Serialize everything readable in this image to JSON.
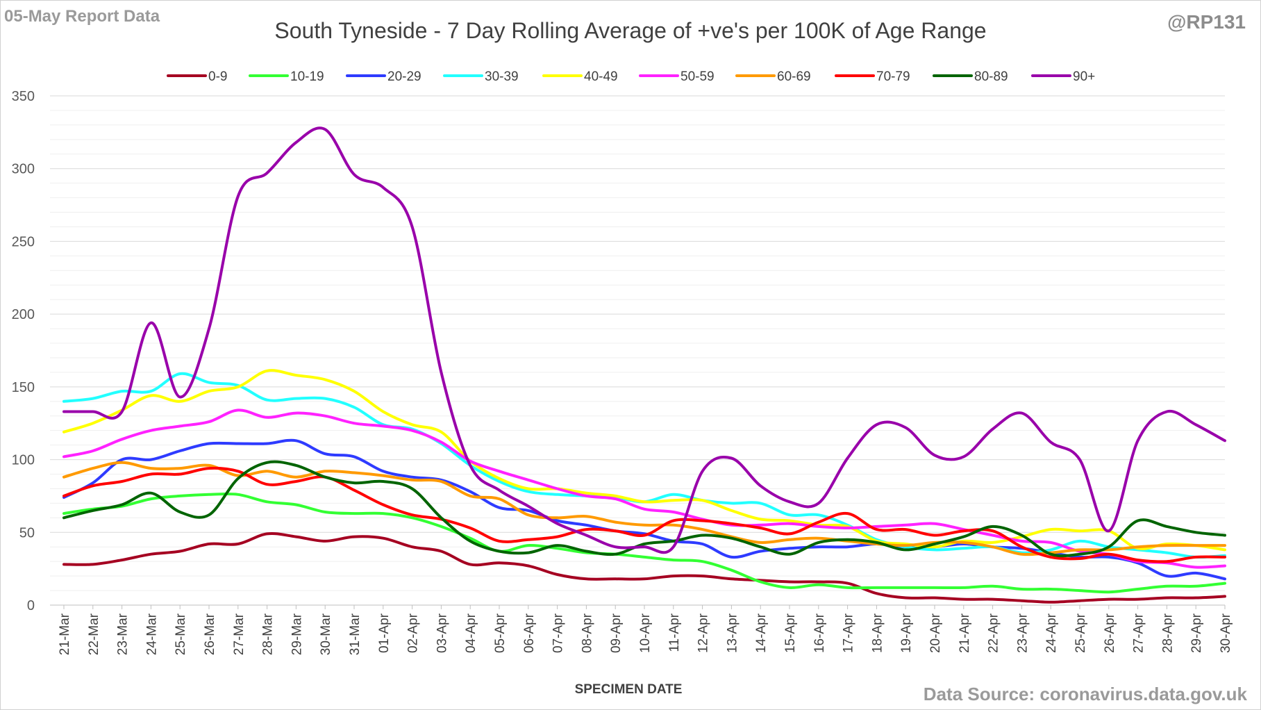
{
  "header": {
    "report_label": "05-May Report Data",
    "handle": "@RP131",
    "source": "Data Source: coronavirus.data.gov.uk"
  },
  "chart_data": {
    "type": "line",
    "title": "South Tyneside - 7 Day Rolling Average of +ve's per 100K of Age Range",
    "xlabel": "SPECIMEN DATE",
    "ylabel": "",
    "ylim": [
      0,
      350
    ],
    "yticks": [
      0,
      50,
      100,
      150,
      200,
      250,
      300,
      350
    ],
    "grid": true,
    "legend_position": "top",
    "categories": [
      "21-Mar",
      "22-Mar",
      "23-Mar",
      "24-Mar",
      "25-Mar",
      "26-Mar",
      "27-Mar",
      "28-Mar",
      "29-Mar",
      "30-Mar",
      "31-Mar",
      "01-Apr",
      "02-Apr",
      "03-Apr",
      "04-Apr",
      "05-Apr",
      "06-Apr",
      "07-Apr",
      "08-Apr",
      "09-Apr",
      "10-Apr",
      "11-Apr",
      "12-Apr",
      "13-Apr",
      "14-Apr",
      "15-Apr",
      "16-Apr",
      "17-Apr",
      "18-Apr",
      "19-Apr",
      "20-Apr",
      "21-Apr",
      "22-Apr",
      "23-Apr",
      "24-Apr",
      "25-Apr",
      "26-Apr",
      "27-Apr",
      "28-Apr",
      "29-Apr",
      "30-Apr"
    ],
    "series": [
      {
        "name": "0-9",
        "color": "#a50021",
        "values": [
          28,
          28,
          31,
          35,
          37,
          42,
          42,
          49,
          47,
          44,
          47,
          46,
          40,
          37,
          28,
          29,
          27,
          21,
          18,
          18,
          18,
          20,
          20,
          18,
          17,
          16,
          16,
          15,
          8,
          5,
          5,
          4,
          4,
          3,
          2,
          3,
          4,
          4,
          5,
          5,
          6
        ]
      },
      {
        "name": "10-19",
        "color": "#33ff33",
        "values": [
          63,
          66,
          68,
          73,
          75,
          76,
          76,
          71,
          69,
          64,
          63,
          63,
          60,
          54,
          46,
          37,
          41,
          39,
          36,
          35,
          33,
          31,
          30,
          24,
          16,
          12,
          14,
          12,
          12,
          12,
          12,
          12,
          13,
          11,
          11,
          10,
          9,
          11,
          13,
          13,
          15
        ]
      },
      {
        "name": "20-29",
        "color": "#2e3bff",
        "values": [
          74,
          84,
          100,
          100,
          106,
          111,
          111,
          111,
          113,
          104,
          102,
          92,
          88,
          86,
          78,
          67,
          65,
          58,
          55,
          51,
          49,
          44,
          42,
          33,
          37,
          39,
          40,
          40,
          42,
          40,
          40,
          42,
          40,
          39,
          36,
          33,
          33,
          29,
          20,
          22,
          18
        ]
      },
      {
        "name": "30-39",
        "color": "#22ffff",
        "values": [
          140,
          142,
          147,
          147,
          159,
          153,
          151,
          141,
          142,
          142,
          136,
          124,
          121,
          111,
          96,
          85,
          78,
          76,
          75,
          74,
          71,
          76,
          72,
          70,
          70,
          62,
          62,
          55,
          45,
          40,
          38,
          39,
          40,
          36,
          38,
          44,
          40,
          38,
          36,
          33,
          34
        ]
      },
      {
        "name": "40-49",
        "color": "#ffff00",
        "values": [
          119,
          125,
          134,
          144,
          140,
          147,
          150,
          161,
          158,
          155,
          147,
          133,
          124,
          119,
          99,
          87,
          80,
          80,
          77,
          75,
          71,
          72,
          72,
          65,
          59,
          58,
          55,
          54,
          44,
          42,
          40,
          44,
          43,
          47,
          52,
          51,
          51,
          39,
          42,
          41,
          38
        ]
      },
      {
        "name": "50-59",
        "color": "#ff22ff",
        "values": [
          102,
          106,
          114,
          120,
          123,
          126,
          134,
          129,
          132,
          130,
          125,
          123,
          120,
          112,
          99,
          92,
          86,
          80,
          75,
          73,
          66,
          64,
          59,
          55,
          55,
          56,
          54,
          53,
          54,
          55,
          56,
          52,
          48,
          44,
          43,
          37,
          35,
          30,
          29,
          26,
          27
        ]
      },
      {
        "name": "60-69",
        "color": "#ff9a00",
        "values": [
          88,
          94,
          98,
          94,
          94,
          96,
          89,
          92,
          88,
          92,
          91,
          89,
          86,
          85,
          75,
          73,
          62,
          60,
          61,
          57,
          55,
          55,
          52,
          47,
          43,
          45,
          46,
          44,
          42,
          41,
          43,
          43,
          40,
          35,
          36,
          38,
          38,
          40,
          41,
          41,
          41
        ]
      },
      {
        "name": "70-79",
        "color": "#ff0000",
        "values": [
          75,
          82,
          85,
          90,
          90,
          94,
          92,
          83,
          85,
          88,
          79,
          69,
          62,
          59,
          53,
          44,
          45,
          47,
          52,
          51,
          48,
          58,
          58,
          56,
          53,
          49,
          57,
          63,
          52,
          52,
          48,
          51,
          51,
          40,
          33,
          32,
          35,
          31,
          30,
          33,
          33
        ]
      },
      {
        "name": "80-89",
        "color": "#006400",
        "values": [
          60,
          65,
          69,
          77,
          64,
          62,
          87,
          98,
          96,
          88,
          84,
          85,
          80,
          60,
          44,
          37,
          36,
          41,
          37,
          35,
          42,
          44,
          48,
          46,
          40,
          35,
          43,
          45,
          43,
          38,
          42,
          47,
          54,
          48,
          35,
          35,
          40,
          58,
          54,
          50,
          48
        ]
      },
      {
        "name": "90+",
        "color": "#9900aa",
        "values": [
          133,
          133,
          133,
          194,
          143,
          190,
          281,
          297,
          318,
          327,
          296,
          287,
          260,
          160,
          96,
          79,
          68,
          56,
          48,
          40,
          40,
          40,
          92,
          101,
          82,
          71,
          70,
          101,
          124,
          122,
          103,
          102,
          121,
          132,
          112,
          100,
          51,
          113,
          133,
          124,
          113
        ]
      }
    ]
  }
}
